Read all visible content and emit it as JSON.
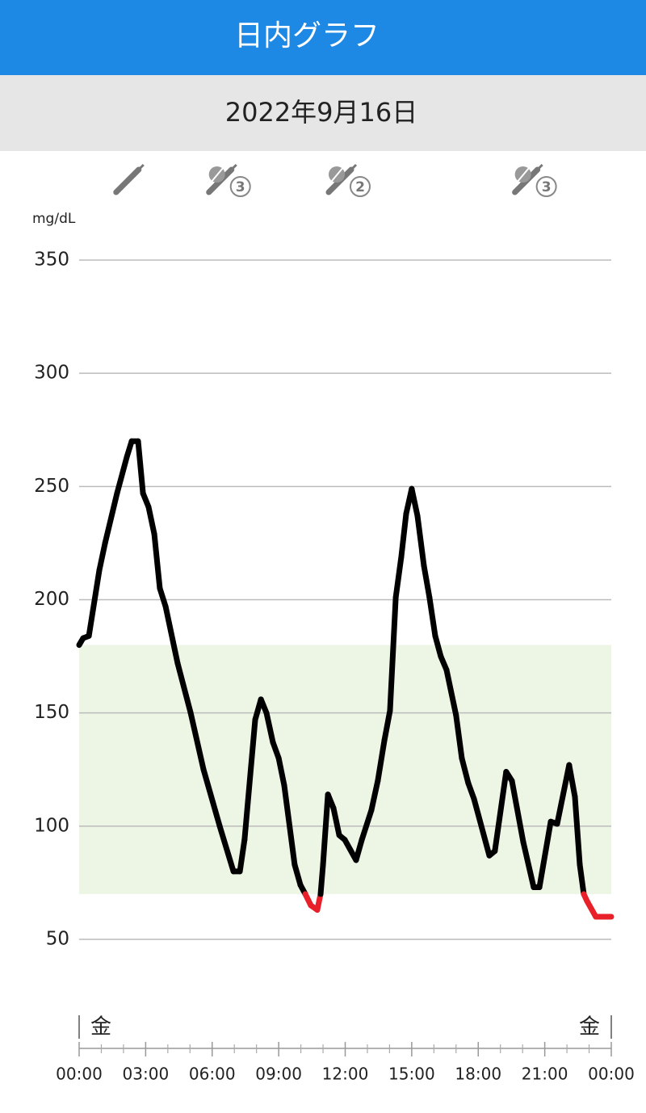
{
  "header": {
    "title": "日内グラフ"
  },
  "date": "2022年9月16日",
  "chart_data": {
    "type": "line",
    "y_unit": "mg/dL",
    "target_range": [
      70,
      180
    ],
    "target_color": "#edf5e5",
    "low_color": "#e8202a",
    "day_labels": [
      "金",
      "金"
    ],
    "events": [
      {
        "x": 2.25,
        "kind": "insulin"
      },
      {
        "x": 6.8,
        "kind": "meal-insulin",
        "badge": 3
      },
      {
        "x": 12.2,
        "kind": "meal-insulin",
        "badge": 2
      },
      {
        "x": 20.6,
        "kind": "meal-insulin",
        "badge": 3
      }
    ],
    "x": [
      0,
      0.18,
      0.44,
      0.91,
      1.17,
      1.71,
      2.15,
      2.37,
      2.66,
      2.88,
      3.13,
      3.39,
      3.64,
      3.9,
      4.44,
      5.03,
      5.61,
      6.34,
      6.96,
      7.25,
      7.46,
      7.94,
      8.2,
      8.45,
      8.74,
      9.0,
      9.25,
      9.72,
      9.98,
      10.2,
      10.45,
      10.74,
      10.89,
      11.0,
      11.22,
      11.47,
      11.73,
      11.98,
      12.49,
      12.75,
      13.18,
      13.47,
      13.77,
      14.02,
      14.28,
      14.53,
      14.75,
      15.0,
      15.26,
      15.55,
      15.8,
      16.06,
      16.31,
      16.57,
      17.0,
      17.26,
      17.55,
      17.81,
      18.5,
      18.75,
      19.26,
      19.52,
      20.03,
      20.5,
      20.76,
      21.27,
      21.56,
      22.1,
      22.36,
      22.58,
      22.76,
      22.9,
      23.3,
      24.0
    ],
    "series": [
      {
        "color": "#000000",
        "values": [
          180,
          183,
          184,
          213,
          225,
          247,
          263,
          270,
          270,
          247,
          241,
          229,
          205,
          197,
          172,
          150,
          125,
          100,
          80,
          80,
          94,
          147,
          156,
          150,
          137,
          130,
          118,
          83,
          74,
          70,
          65,
          63,
          70,
          83,
          114,
          108,
          96,
          94,
          85,
          94,
          107,
          120,
          138,
          151,
          201,
          219,
          238,
          249,
          237,
          215,
          201,
          184,
          175,
          169,
          149,
          130,
          119,
          112,
          87,
          89,
          124,
          120,
          93,
          73,
          73,
          102,
          101,
          127,
          113,
          83,
          70,
          67,
          60,
          60
        ]
      }
    ],
    "ylim": [
      50,
      350
    ],
    "yticks": [
      50,
      100,
      150,
      200,
      250,
      300,
      350
    ],
    "xlim": [
      0,
      24
    ],
    "xticks": [
      {
        "value": 0,
        "label": "00:00"
      },
      {
        "value": 3,
        "label": "03:00"
      },
      {
        "value": 6,
        "label": "06:00"
      },
      {
        "value": 9,
        "label": "09:00"
      },
      {
        "value": 12,
        "label": "12:00"
      },
      {
        "value": 15,
        "label": "15:00"
      },
      {
        "value": 18,
        "label": "18:00"
      },
      {
        "value": 21,
        "label": "21:00"
      },
      {
        "value": 24,
        "label": "00:00"
      }
    ],
    "xminorticks": [
      1,
      2,
      4,
      5,
      7,
      8,
      10,
      11,
      13,
      14,
      16,
      17,
      19,
      20,
      22,
      23
    ],
    "grid": true
  }
}
